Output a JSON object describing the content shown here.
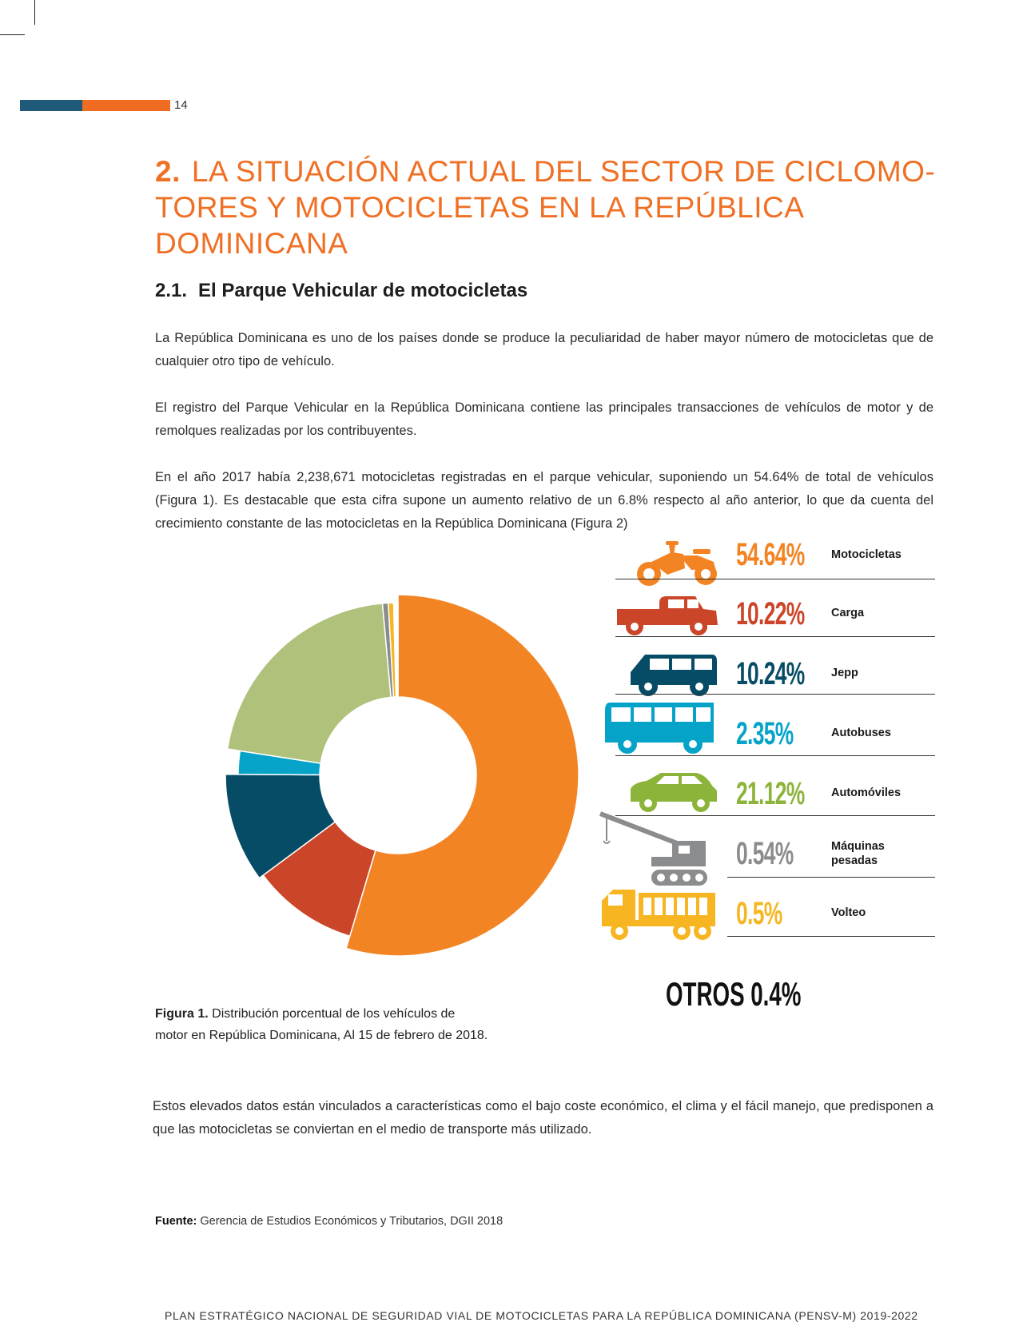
{
  "header": {
    "page_number": "14",
    "bar_colors": {
      "blue": "#1f5a78",
      "orange": "#ef6c22"
    }
  },
  "section": {
    "number": "2.",
    "title": "LA SITUACIÓN ACTUAL DEL SECTOR DE CICLOMO-TORES Y MOTOCICLETAS EN LA REPÚBLICA DOMINICANA",
    "title_color": "#ef7025"
  },
  "subsection": {
    "number": "2.1.",
    "title": "El Parque Vehicular de motocicletas"
  },
  "body": {
    "p1": "La República Dominicana es uno de los países donde se produce la peculiaridad de haber mayor número de motocicletas que de cualquier otro tipo de vehículo.",
    "p2": "El registro del Parque Vehicular en la República Dominicana contiene las principales transacciones de vehículos de motor y de remolques realizadas por los contribuyentes.",
    "p3": "En el año 2017 había 2,238,671 motocicletas registradas en el parque vehicular, suponiendo un 54.64% de total de vehículos (Figura 1). Es destacable que esta cifra supone un aumento relativo de un 6.8% respecto al año anterior, lo que da cuenta del crecimiento constante de las motocicletas en la República Dominicana (Figura 2)",
    "p4": "Estos elevados datos están vinculados a características como el bajo coste económico, el clima y el fácil manejo, que predisponen a que las motocicletas se conviertan en el medio de transporte más utilizado."
  },
  "chart_data": {
    "type": "pie",
    "series": [
      {
        "name": "Motocicletas",
        "value": 54.64,
        "label": "54.64%",
        "color": "#f28424",
        "icon": "motorcycle-icon"
      },
      {
        "name": "Carga",
        "value": 10.22,
        "label": "10.22%",
        "color": "#cb4529",
        "icon": "pickup-truck-icon"
      },
      {
        "name": "Jepp",
        "value": 10.24,
        "label": "10.24%",
        "color": "#074c66",
        "icon": "suv-icon"
      },
      {
        "name": "Autobuses",
        "value": 2.35,
        "label": "2.35%",
        "color": "#06a3c9",
        "icon": "bus-icon"
      },
      {
        "name": "Automóviles",
        "value": 21.12,
        "label": "21.12%",
        "color": "#afc17a",
        "text_color": "#8db43a",
        "icon": "car-icon"
      },
      {
        "name": "Máquinas pesadas",
        "value": 0.54,
        "label": "0.54%",
        "color": "#8a8c8e",
        "icon": "crane-icon"
      },
      {
        "name": "Volteo",
        "value": 0.5,
        "label": "0.5%",
        "color": "#f6b521",
        "icon": "dump-truck-icon"
      },
      {
        "name": "OTROS",
        "value": 0.4,
        "label": "0.4%",
        "color": "#ffffff"
      }
    ],
    "donut": true
  },
  "legend": {
    "labels": [
      "Motocicletas",
      "Carga",
      "Jepp",
      "Autobuses",
      "Automóviles",
      "Máquinas\npesadas",
      "Volteo"
    ],
    "otros_label": "OTROS",
    "otros_value": "0.4%"
  },
  "caption": {
    "prefix": "Figura 1.",
    "text": "Distribución porcentual de los vehículos de motor en República Dominicana, Al 15 de febrero de 2018."
  },
  "source": {
    "prefix": "Fuente:",
    "text": "Gerencia de Estudios Económicos y Tributarios, DGII 2018"
  },
  "footer": {
    "text": "PLAN ESTRATÉGICO NACIONAL DE SEGURIDAD VIAL DE MOTOCICLETAS PARA LA REPÚBLICA DOMINICANA (PENSV-M) 2019-2022"
  }
}
